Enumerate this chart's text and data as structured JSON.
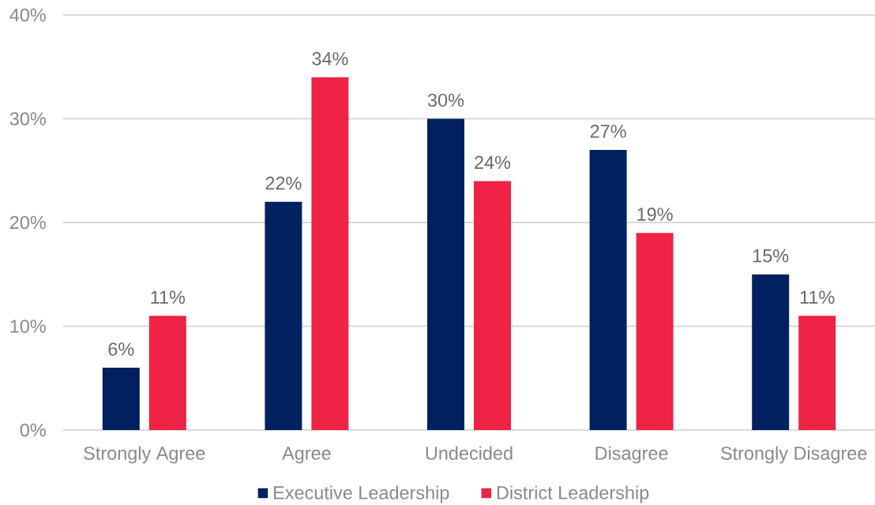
{
  "chart_data": {
    "type": "bar",
    "categories": [
      "Strongly Agree",
      "Agree",
      "Undecided",
      "Disagree",
      "Strongly Disagree"
    ],
    "series": [
      {
        "name": "Executive Leadership",
        "color": "#002060",
        "values": [
          6,
          22,
          30,
          27,
          15
        ],
        "value_labels": [
          "6%",
          "22%",
          "30%",
          "27%",
          "15%"
        ]
      },
      {
        "name": "District Leadership",
        "color": "#ee2346",
        "values": [
          11,
          34,
          24,
          19,
          11
        ],
        "value_labels": [
          "11%",
          "34%",
          "24%",
          "19%",
          "11%"
        ]
      }
    ],
    "ylim": [
      0,
      40
    ],
    "yticks": [
      {
        "value": 0,
        "label": "0%"
      },
      {
        "value": 10,
        "label": "10%"
      },
      {
        "value": 20,
        "label": "20%"
      },
      {
        "value": 30,
        "label": "30%"
      },
      {
        "value": 40,
        "label": "40%"
      }
    ],
    "grid": "y",
    "legend": "bottom"
  }
}
